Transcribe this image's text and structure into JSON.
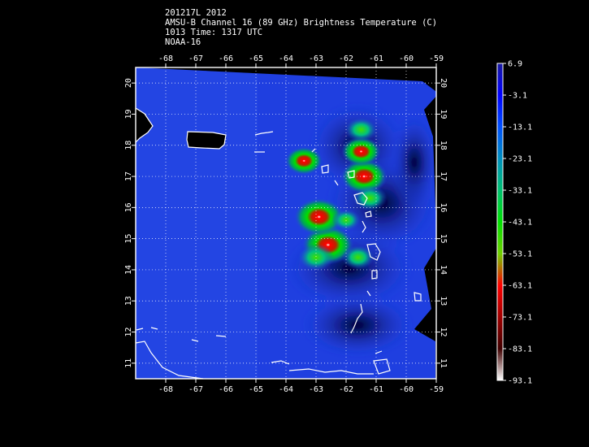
{
  "header": {
    "lines": [
      "201217L 2012",
      "AMSU-B Channel 16 (89 GHz) Brightness Temperature (C)",
      "1013 Time: 1317 UTC",
      "NOAA-16"
    ]
  },
  "map": {
    "lon_ticks": [
      "-68",
      "-67",
      "-66",
      "-65",
      "-64",
      "-63",
      "-62",
      "-61",
      "-60",
      "-59"
    ],
    "lat_ticks": [
      "11",
      "12",
      "13",
      "14",
      "15",
      "16",
      "17",
      "18",
      "19",
      "20"
    ],
    "lon_range": [
      -69,
      -59
    ],
    "lat_range": [
      10.5,
      20.5
    ],
    "colors": {
      "background": "#000000",
      "field_base": "#1f3fe0",
      "coast": "#ffffff",
      "grid": "#ffffff"
    },
    "features": [
      {
        "type": "convective-cell",
        "lon": -62.6,
        "lat": 14.8,
        "intensity": 1.0
      },
      {
        "type": "convective-cell",
        "lon": -62.9,
        "lat": 15.7,
        "intensity": 0.95
      },
      {
        "type": "convective-cell",
        "lon": -61.4,
        "lat": 17.0,
        "intensity": 0.85
      },
      {
        "type": "convective-cell",
        "lon": -61.5,
        "lat": 17.8,
        "intensity": 0.65
      },
      {
        "type": "convective-cell",
        "lon": -63.4,
        "lat": 17.5,
        "intensity": 0.6
      },
      {
        "type": "convective-cell",
        "lon": -61.2,
        "lat": 16.3,
        "intensity": 0.5
      },
      {
        "type": "convective-cell",
        "lon": -63.0,
        "lat": 14.4,
        "intensity": 0.55
      },
      {
        "type": "convective-cell",
        "lon": -61.6,
        "lat": 14.4,
        "intensity": 0.45
      },
      {
        "type": "convective-cell",
        "lon": -61.5,
        "lat": 18.5,
        "intensity": 0.45
      },
      {
        "type": "convective-cell",
        "lon": -62.0,
        "lat": 15.6,
        "intensity": 0.35
      }
    ]
  },
  "colorbar": {
    "labels": [
      "6.9",
      "-3.1",
      "-13.1",
      "-23.1",
      "-33.1",
      "-43.1",
      "-53.1",
      "-63.1",
      "-73.1",
      "-83.1",
      "-93.1"
    ],
    "range": [
      6.9,
      -93.1
    ],
    "stops": [
      "#1a1aa0",
      "#0000ff",
      "#0050ff",
      "#008fbf",
      "#00c070",
      "#00e000",
      "#70d000",
      "#ff0000",
      "#a00000",
      "#400000",
      "#ffffff"
    ]
  }
}
